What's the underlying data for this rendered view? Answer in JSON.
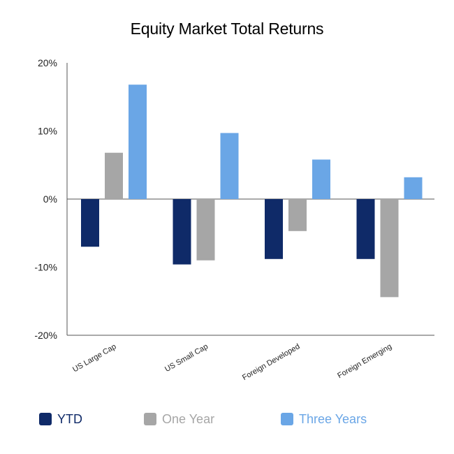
{
  "chart_data": {
    "type": "bar",
    "title": "Equity Market Total Returns",
    "categories": [
      "US Large Cap",
      "US Small Cap",
      "Foreign Developed",
      "Foreign Emerging"
    ],
    "series": [
      {
        "name": "YTD",
        "color": "#0f2a68",
        "values": [
          -7.0,
          -9.6,
          -8.8,
          -8.8
        ]
      },
      {
        "name": "One Year",
        "color": "#a6a6a6",
        "values": [
          6.8,
          -9.0,
          -4.7,
          -14.4
        ]
      },
      {
        "name": "Three Years",
        "color": "#6aa6e6",
        "values": [
          16.8,
          9.7,
          5.8,
          3.2
        ]
      }
    ],
    "ylim": [
      -20,
      20
    ],
    "yticks": [
      20,
      10,
      0,
      -10,
      -20
    ],
    "ytick_labels": [
      "20%",
      "10%",
      "0%",
      "-10%",
      "-20%"
    ],
    "xlabel": "",
    "ylabel": "",
    "legend_position": "bottom",
    "grid": false
  }
}
